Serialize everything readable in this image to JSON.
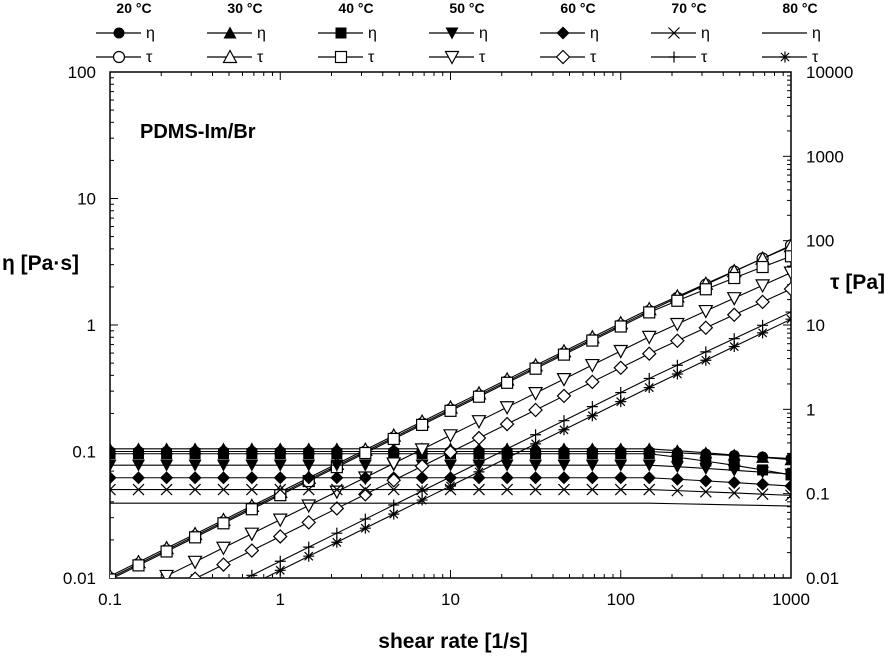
{
  "chart_data": {
    "type": "scatter",
    "title": "",
    "annotation": "PDMS-Im/Br",
    "xlabel": "shear rate [1/s]",
    "ylabel_left": "η [Pa·s]",
    "ylabel_right": "τ [Pa]",
    "xscale": "log",
    "yscale": "log",
    "xlim": [
      0.1,
      1000
    ],
    "ylim_left": [
      0.01,
      100
    ],
    "ylim_right": [
      0.01,
      10000
    ],
    "grid": false,
    "legend_position": "top",
    "x_ticks": [
      {
        "value": 0.1,
        "label": "0.1"
      },
      {
        "value": 1,
        "label": "1"
      },
      {
        "value": 10,
        "label": "10"
      },
      {
        "value": 100,
        "label": "100"
      },
      {
        "value": 1000,
        "label": "1000"
      }
    ],
    "y_left_ticks": [
      {
        "value": 0.01,
        "label": "0.01"
      },
      {
        "value": 0.1,
        "label": "0.1"
      },
      {
        "value": 1,
        "label": "1"
      },
      {
        "value": 10,
        "label": "10"
      },
      {
        "value": 100,
        "label": "100"
      }
    ],
    "y_right_ticks": [
      {
        "value": 0.01,
        "label": "0.01"
      },
      {
        "value": 0.1,
        "label": "0.1"
      },
      {
        "value": 1,
        "label": "1"
      },
      {
        "value": 10,
        "label": "10"
      },
      {
        "value": 100,
        "label": "100"
      },
      {
        "value": 1000,
        "label": "1000"
      },
      {
        "value": 10000,
        "label": "10000"
      }
    ],
    "legend_eta_symbol": "η",
    "legend_tau_symbol": "τ",
    "x": [
      0.1,
      0.147,
      0.215,
      0.316,
      0.464,
      0.681,
      1,
      1.47,
      2.15,
      3.16,
      4.64,
      6.81,
      10,
      14.7,
      21.5,
      31.6,
      46.4,
      68.1,
      100,
      147,
      215,
      316,
      464,
      681,
      1000
    ],
    "temperatures": [
      {
        "label": "20 °C",
        "eta": 0.1,
        "drop": 0.88,
        "tau_offset": 0,
        "eta_marker": "filled-circle",
        "tau_marker": "open-circle"
      },
      {
        "label": "30 °C",
        "eta": 0.105,
        "drop": 0.82,
        "tau_offset": 0,
        "eta_marker": "filled-triangle-up",
        "tau_marker": "open-triangle-up"
      },
      {
        "label": "40 °C",
        "eta": 0.096,
        "drop": 0.68,
        "tau_offset": 0,
        "eta_marker": "filled-square",
        "tau_marker": "open-square"
      },
      {
        "label": "50 °C",
        "eta": 0.078,
        "drop": 0.85,
        "tau_offset": -0.2,
        "eta_marker": "filled-triangle-down",
        "tau_marker": "open-triangle-down"
      },
      {
        "label": "60 °C",
        "eta": 0.062,
        "drop": 0.86,
        "tau_offset": -0.3,
        "eta_marker": "filled-diamond",
        "tau_marker": "open-diamond"
      },
      {
        "label": "70 °C",
        "eta": 0.05,
        "drop": 0.9,
        "tau_offset": -0.5,
        "eta_marker": "x",
        "tau_marker": "plus"
      },
      {
        "label": "80 °C",
        "eta": 0.039,
        "drop": 0.95,
        "tau_offset": -0.5,
        "eta_marker": "none",
        "tau_marker": "asterisk"
      }
    ]
  }
}
